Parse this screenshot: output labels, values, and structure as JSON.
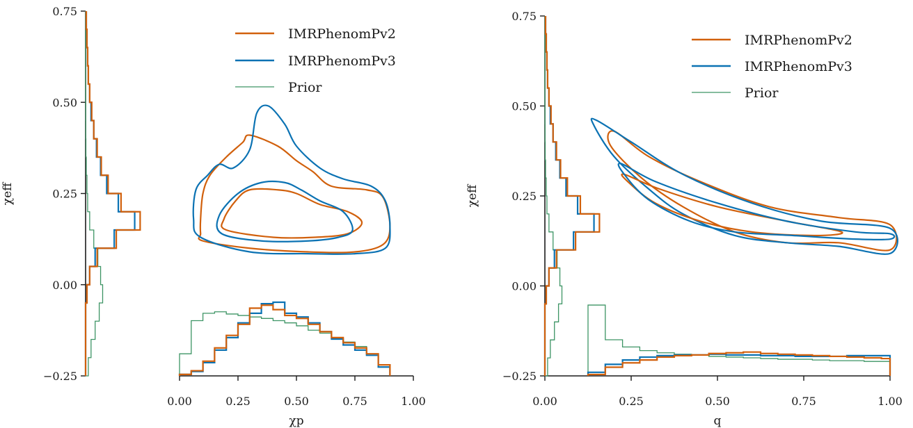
{
  "colors": {
    "IMRPhenomPv2": "#d1600c",
    "IMRPhenomPv3": "#0b72b3",
    "Prior": "#3c9464"
  },
  "chart_data": [
    {
      "type": "contour",
      "legend_position": "top-right",
      "xlabel": "χp",
      "ylabel": "χeff",
      "xlim": [
        0,
        1
      ],
      "ylim": [
        -0.25,
        0.75
      ],
      "xticks": [
        "0.00",
        "0.25",
        "0.50",
        "0.75",
        "1.00"
      ],
      "yticks": [
        "−0.25",
        "0.00",
        "0.25",
        "0.50",
        "0.75"
      ],
      "legend": [
        "IMRPhenomPv2",
        "IMRPhenomPv3",
        "Prior"
      ],
      "contours": [
        {
          "series": "IMRPhenomPv2",
          "level": "outer",
          "points": [
            [
              0.1,
              0.12
            ],
            [
              0.3,
              0.1
            ],
            [
              0.55,
              0.09
            ],
            [
              0.75,
              0.09
            ],
            [
              0.87,
              0.11
            ],
            [
              0.9,
              0.16
            ],
            [
              0.87,
              0.24
            ],
            [
              0.8,
              0.26
            ],
            [
              0.65,
              0.27
            ],
            [
              0.57,
              0.31
            ],
            [
              0.5,
              0.34
            ],
            [
              0.42,
              0.38
            ],
            [
              0.3,
              0.41
            ],
            [
              0.27,
              0.39
            ],
            [
              0.2,
              0.35
            ],
            [
              0.13,
              0.3
            ],
            [
              0.1,
              0.25
            ],
            [
              0.09,
              0.18
            ],
            [
              0.09,
              0.14
            ]
          ]
        },
        {
          "series": "IMRPhenomPv3",
          "level": "outer",
          "points": [
            [
              0.09,
              0.13
            ],
            [
              0.3,
              0.09
            ],
            [
              0.55,
              0.085
            ],
            [
              0.75,
              0.085
            ],
            [
              0.88,
              0.1
            ],
            [
              0.9,
              0.16
            ],
            [
              0.88,
              0.23
            ],
            [
              0.82,
              0.27
            ],
            [
              0.7,
              0.29
            ],
            [
              0.6,
              0.32
            ],
            [
              0.5,
              0.38
            ],
            [
              0.45,
              0.44
            ],
            [
              0.38,
              0.49
            ],
            [
              0.33,
              0.47
            ],
            [
              0.3,
              0.37
            ],
            [
              0.23,
              0.32
            ],
            [
              0.17,
              0.33
            ],
            [
              0.12,
              0.3
            ],
            [
              0.07,
              0.26
            ],
            [
              0.06,
              0.18
            ]
          ]
        },
        {
          "series": "IMRPhenomPv2",
          "level": "inner",
          "points": [
            [
              0.2,
              0.15
            ],
            [
              0.4,
              0.13
            ],
            [
              0.58,
              0.13
            ],
            [
              0.72,
              0.14
            ],
            [
              0.78,
              0.17
            ],
            [
              0.72,
              0.2
            ],
            [
              0.6,
              0.22
            ],
            [
              0.5,
              0.25
            ],
            [
              0.42,
              0.26
            ],
            [
              0.3,
              0.26
            ],
            [
              0.24,
              0.23
            ],
            [
              0.19,
              0.18
            ]
          ]
        },
        {
          "series": "IMRPhenomPv3",
          "level": "inner",
          "points": [
            [
              0.18,
              0.14
            ],
            [
              0.35,
              0.12
            ],
            [
              0.55,
              0.12
            ],
            [
              0.68,
              0.13
            ],
            [
              0.74,
              0.15
            ],
            [
              0.7,
              0.2
            ],
            [
              0.6,
              0.23
            ],
            [
              0.52,
              0.26
            ],
            [
              0.45,
              0.28
            ],
            [
              0.35,
              0.28
            ],
            [
              0.25,
              0.25
            ],
            [
              0.17,
              0.19
            ]
          ]
        }
      ],
      "marginal_y": {
        "bins": [
          -0.25,
          -0.2,
          -0.15,
          -0.1,
          -0.05,
          0,
          0.05,
          0.1,
          0.15,
          0.2,
          0.25,
          0.3,
          0.35,
          0.4,
          0.45,
          0.5,
          0.55,
          0.6,
          0.65,
          0.7,
          0.75
        ],
        "IMRPhenomPv2": [
          0,
          0,
          0,
          0,
          0.02,
          0.06,
          0.17,
          0.45,
          0.8,
          0.52,
          0.33,
          0.23,
          0.17,
          0.12,
          0.09,
          0.06,
          0.04,
          0.03,
          0.02,
          0.01
        ],
        "IMRPhenomPv3": [
          0,
          0,
          0,
          0,
          0.02,
          0.06,
          0.14,
          0.42,
          0.72,
          0.48,
          0.31,
          0.22,
          0.16,
          0.12,
          0.08,
          0.06,
          0.04,
          0.03,
          0.02,
          0.01
        ],
        "Prior": [
          0.04,
          0.08,
          0.14,
          0.2,
          0.25,
          0.22,
          0.18,
          0.12,
          0.06,
          0.03,
          0.02,
          0.01,
          0.005,
          0.003,
          0.002,
          0.001,
          0.001,
          0,
          0,
          0
        ]
      },
      "marginal_x": {
        "bins": [
          0,
          0.05,
          0.1,
          0.15,
          0.2,
          0.25,
          0.3,
          0.35,
          0.4,
          0.45,
          0.5,
          0.55,
          0.6,
          0.65,
          0.7,
          0.75,
          0.8,
          0.85,
          0.9
        ],
        "IMRPhenomPv2": [
          0.02,
          0.07,
          0.2,
          0.38,
          0.55,
          0.7,
          0.92,
          0.96,
          0.9,
          0.82,
          0.78,
          0.7,
          0.6,
          0.52,
          0.45,
          0.38,
          0.3,
          0.15
        ],
        "IMRPhenomPv3": [
          0.02,
          0.06,
          0.18,
          0.35,
          0.52,
          0.72,
          0.85,
          0.98,
          1.0,
          0.85,
          0.8,
          0.72,
          0.6,
          0.5,
          0.42,
          0.35,
          0.28,
          0.12
        ],
        "Prior": [
          0.3,
          0.75,
          0.85,
          0.87,
          0.84,
          0.82,
          0.8,
          0.78,
          0.75,
          0.72,
          0.68,
          0.62,
          0.58,
          0.52,
          0.46,
          0.4,
          0.3,
          0.12
        ]
      }
    },
    {
      "type": "contour",
      "legend_position": "top-right",
      "xlabel": "q",
      "ylabel": "χeff",
      "xlim": [
        0,
        1
      ],
      "ylim": [
        -0.25,
        0.75
      ],
      "xticks": [
        "0.00",
        "0.25",
        "0.50",
        "0.75",
        "1.00"
      ],
      "yticks": [
        "−0.25",
        "0.00",
        "0.25",
        "0.50",
        "0.75"
      ],
      "legend": [
        "IMRPhenomPv2",
        "IMRPhenomPv3",
        "Prior"
      ],
      "contours": [
        {
          "series": "IMRPhenomPv2",
          "level": "outer",
          "points": [
            [
              0.2,
              0.43
            ],
            [
              0.3,
              0.36
            ],
            [
              0.45,
              0.29
            ],
            [
              0.65,
              0.22
            ],
            [
              0.85,
              0.19
            ],
            [
              1.0,
              0.17
            ],
            [
              1.0,
              0.1
            ],
            [
              0.85,
              0.12
            ],
            [
              0.7,
              0.12
            ],
            [
              0.55,
              0.15
            ],
            [
              0.4,
              0.22
            ],
            [
              0.28,
              0.3
            ],
            [
              0.19,
              0.39
            ]
          ]
        },
        {
          "series": "IMRPhenomPv3",
          "level": "outer",
          "points": [
            [
              0.15,
              0.46
            ],
            [
              0.25,
              0.4
            ],
            [
              0.4,
              0.31
            ],
            [
              0.6,
              0.23
            ],
            [
              0.8,
              0.18
            ],
            [
              1.0,
              0.16
            ],
            [
              1.0,
              0.09
            ],
            [
              0.85,
              0.11
            ],
            [
              0.7,
              0.12
            ],
            [
              0.55,
              0.14
            ],
            [
              0.4,
              0.2
            ],
            [
              0.3,
              0.27
            ],
            [
              0.2,
              0.36
            ],
            [
              0.14,
              0.45
            ]
          ]
        },
        {
          "series": "IMRPhenomPv2",
          "level": "inner",
          "points": [
            [
              0.23,
              0.31
            ],
            [
              0.33,
              0.27
            ],
            [
              0.5,
              0.22
            ],
            [
              0.7,
              0.18
            ],
            [
              0.86,
              0.15
            ],
            [
              0.78,
              0.14
            ],
            [
              0.6,
              0.15
            ],
            [
              0.45,
              0.18
            ],
            [
              0.32,
              0.23
            ],
            [
              0.24,
              0.29
            ]
          ]
        },
        {
          "series": "IMRPhenomPv3",
          "level": "inner",
          "points": [
            [
              0.22,
              0.34
            ],
            [
              0.32,
              0.29
            ],
            [
              0.5,
              0.23
            ],
            [
              0.7,
              0.18
            ],
            [
              0.9,
              0.15
            ],
            [
              1.0,
              0.145
            ],
            [
              1.0,
              0.13
            ],
            [
              0.9,
              0.13
            ],
            [
              0.72,
              0.14
            ],
            [
              0.55,
              0.15
            ],
            [
              0.42,
              0.18
            ],
            [
              0.3,
              0.24
            ],
            [
              0.23,
              0.31
            ]
          ]
        }
      ],
      "marginal_y": {
        "bins": [
          -0.25,
          -0.2,
          -0.15,
          -0.1,
          -0.05,
          0,
          0.05,
          0.1,
          0.15,
          0.2,
          0.25,
          0.3,
          0.35,
          0.4,
          0.45,
          0.5,
          0.55,
          0.6,
          0.65,
          0.7,
          0.75
        ],
        "IMRPhenomPv2": [
          0,
          0,
          0,
          0,
          0.02,
          0.06,
          0.17,
          0.45,
          0.8,
          0.52,
          0.33,
          0.23,
          0.17,
          0.12,
          0.09,
          0.06,
          0.04,
          0.03,
          0.02,
          0.01
        ],
        "IMRPhenomPv3": [
          0,
          0,
          0,
          0,
          0.02,
          0.06,
          0.14,
          0.42,
          0.72,
          0.48,
          0.31,
          0.22,
          0.16,
          0.12,
          0.08,
          0.06,
          0.04,
          0.03,
          0.02,
          0.01
        ],
        "Prior": [
          0.04,
          0.08,
          0.14,
          0.2,
          0.25,
          0.22,
          0.18,
          0.12,
          0.06,
          0.03,
          0.02,
          0.01,
          0.005,
          0.003,
          0.002,
          0.001,
          0.001,
          0,
          0,
          0
        ]
      },
      "marginal_x": {
        "bins": [
          0.125,
          0.175,
          0.225,
          0.275,
          0.325,
          0.375,
          0.425,
          0.475,
          0.525,
          0.575,
          0.625,
          0.675,
          0.725,
          0.775,
          0.825,
          0.875,
          0.925,
          0.975,
          1.0
        ],
        "IMRPhenomPv2": [
          0.02,
          0.12,
          0.18,
          0.22,
          0.26,
          0.28,
          0.29,
          0.31,
          0.32,
          0.33,
          0.31,
          0.3,
          0.29,
          0.28,
          0.27,
          0.26,
          0.25,
          0.24
        ],
        "IMRPhenomPv3": [
          0.05,
          0.16,
          0.22,
          0.26,
          0.28,
          0.29,
          0.29,
          0.3,
          0.29,
          0.29,
          0.28,
          0.28,
          0.27,
          0.27,
          0.27,
          0.28,
          0.28,
          0.28
        ],
        "Prior": [
          0.98,
          0.5,
          0.4,
          0.35,
          0.32,
          0.3,
          0.29,
          0.27,
          0.26,
          0.25,
          0.24,
          0.23,
          0.23,
          0.22,
          0.21,
          0.21,
          0.2,
          0.2
        ]
      }
    }
  ]
}
